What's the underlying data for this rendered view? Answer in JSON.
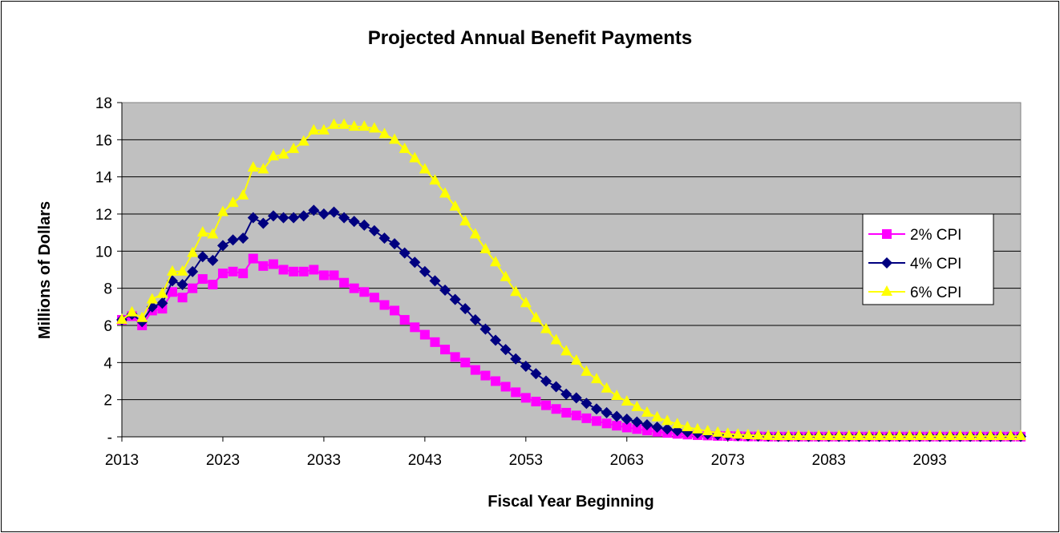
{
  "chart_data": {
    "type": "line",
    "title": "Projected Annual Benefit Payments",
    "xlabel": "Fiscal Year Beginning",
    "ylabel": "Millions of Dollars",
    "xlim": [
      2013,
      2102
    ],
    "ylim": [
      0,
      18
    ],
    "y_ticks": [
      0,
      2,
      4,
      6,
      8,
      10,
      12,
      14,
      16,
      18
    ],
    "y_tick_labels": [
      "-",
      "2",
      "4",
      "6",
      "8",
      "10",
      "12",
      "14",
      "16",
      "18"
    ],
    "x_ticks": [
      2013,
      2023,
      2033,
      2043,
      2053,
      2063,
      2073,
      2083,
      2093
    ],
    "x_tick_labels": [
      "2013",
      "2023",
      "2033",
      "2043",
      "2053",
      "2063",
      "2073",
      "2083",
      "2093"
    ],
    "grid": "horizontal",
    "plot_background": "#C0C0C0",
    "legend_position": "right",
    "x": [
      2013,
      2014,
      2015,
      2016,
      2017,
      2018,
      2019,
      2020,
      2021,
      2022,
      2023,
      2024,
      2025,
      2026,
      2027,
      2028,
      2029,
      2030,
      2031,
      2032,
      2033,
      2034,
      2035,
      2036,
      2037,
      2038,
      2039,
      2040,
      2041,
      2042,
      2043,
      2044,
      2045,
      2046,
      2047,
      2048,
      2049,
      2050,
      2051,
      2052,
      2053,
      2054,
      2055,
      2056,
      2057,
      2058,
      2059,
      2060,
      2061,
      2062,
      2063,
      2064,
      2065,
      2066,
      2067,
      2068,
      2069,
      2070,
      2071,
      2072,
      2073,
      2074,
      2075,
      2076,
      2077,
      2078,
      2079,
      2080,
      2081,
      2082,
      2083,
      2084,
      2085,
      2086,
      2087,
      2088,
      2089,
      2090,
      2091,
      2092,
      2093,
      2094,
      2095,
      2096,
      2097,
      2098,
      2099,
      2100,
      2101,
      2102
    ],
    "series": [
      {
        "name": "2% CPI",
        "color": "#FF00FF",
        "marker": "square",
        "values": [
          6.3,
          6.5,
          6.0,
          6.8,
          6.9,
          7.8,
          7.5,
          8.0,
          8.5,
          8.2,
          8.8,
          8.9,
          8.8,
          9.6,
          9.2,
          9.3,
          9.0,
          8.9,
          8.9,
          9.0,
          8.7,
          8.7,
          8.3,
          8.0,
          7.8,
          7.5,
          7.1,
          6.8,
          6.3,
          5.9,
          5.5,
          5.1,
          4.7,
          4.3,
          4.0,
          3.6,
          3.3,
          3.0,
          2.7,
          2.4,
          2.1,
          1.9,
          1.7,
          1.5,
          1.3,
          1.15,
          1.0,
          0.85,
          0.72,
          0.6,
          0.5,
          0.42,
          0.34,
          0.27,
          0.21,
          0.16,
          0.12,
          0.09,
          0.07,
          0.05,
          0.04,
          0.03,
          0.02,
          0.02,
          0.01,
          0.01,
          0.01,
          0.01,
          0.01,
          0.01,
          0.01,
          0.01,
          0.01,
          0.01,
          0.01,
          0.01,
          0.01,
          0.01,
          0.01,
          0.01,
          0.01,
          0.01,
          0.01,
          0.01,
          0.01,
          0.01,
          0.01,
          0.01,
          0.01,
          0.01
        ]
      },
      {
        "name": "4% CPI",
        "color": "#000080",
        "marker": "diamond",
        "values": [
          6.3,
          6.6,
          6.2,
          7.0,
          7.2,
          8.4,
          8.2,
          8.9,
          9.7,
          9.5,
          10.3,
          10.6,
          10.7,
          11.8,
          11.5,
          11.9,
          11.8,
          11.8,
          11.9,
          12.2,
          12.0,
          12.1,
          11.8,
          11.6,
          11.4,
          11.1,
          10.7,
          10.4,
          9.9,
          9.4,
          8.9,
          8.4,
          7.9,
          7.4,
          6.9,
          6.3,
          5.8,
          5.2,
          4.7,
          4.2,
          3.8,
          3.4,
          3.0,
          2.7,
          2.3,
          2.1,
          1.8,
          1.5,
          1.3,
          1.1,
          0.95,
          0.8,
          0.65,
          0.52,
          0.42,
          0.33,
          0.26,
          0.2,
          0.15,
          0.11,
          0.08,
          0.06,
          0.05,
          0.04,
          0.03,
          0.02,
          0.02,
          0.02,
          0.02,
          0.02,
          0.02,
          0.02,
          0.02,
          0.02,
          0.02,
          0.02,
          0.02,
          0.02,
          0.02,
          0.02,
          0.02,
          0.02,
          0.02,
          0.02,
          0.02,
          0.02,
          0.02,
          0.02,
          0.02,
          0.02
        ]
      },
      {
        "name": "6% CPI",
        "color": "#FFFF00",
        "marker": "triangle",
        "values": [
          6.3,
          6.7,
          6.4,
          7.4,
          7.7,
          8.9,
          8.9,
          9.9,
          11.0,
          10.9,
          12.1,
          12.6,
          13.0,
          14.5,
          14.4,
          15.1,
          15.2,
          15.5,
          15.9,
          16.5,
          16.5,
          16.8,
          16.8,
          16.7,
          16.7,
          16.6,
          16.3,
          16.0,
          15.5,
          15.0,
          14.4,
          13.8,
          13.1,
          12.4,
          11.6,
          10.9,
          10.1,
          9.4,
          8.6,
          7.8,
          7.2,
          6.4,
          5.8,
          5.2,
          4.6,
          4.1,
          3.5,
          3.1,
          2.6,
          2.2,
          1.9,
          1.6,
          1.3,
          1.05,
          0.85,
          0.68,
          0.52,
          0.4,
          0.3,
          0.22,
          0.16,
          0.12,
          0.09,
          0.07,
          0.05,
          0.04,
          0.04,
          0.04,
          0.04,
          0.04,
          0.04,
          0.04,
          0.04,
          0.04,
          0.04,
          0.04,
          0.04,
          0.04,
          0.04,
          0.04,
          0.04,
          0.04,
          0.04,
          0.04,
          0.04,
          0.04,
          0.04,
          0.04,
          0.04,
          0.04
        ]
      }
    ]
  }
}
